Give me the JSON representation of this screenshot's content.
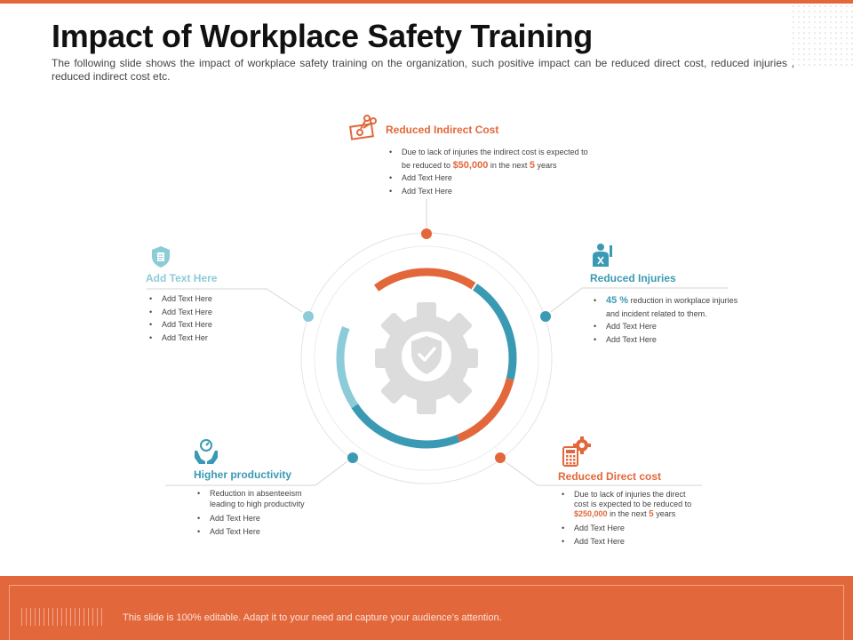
{
  "header": {
    "title": "Impact of Workplace Safety Training",
    "subtitle": "The following slide shows the impact of workplace safety training on the organization, such positive impact can be reduced direct cost, reduced injuries , reduced indirect cost etc."
  },
  "center_icons": [
    "gear-icon",
    "shield-check-icon"
  ],
  "colors": {
    "orange": "#e2683c",
    "teal": "#3a9ab4",
    "light_teal": "#8ccbd8",
    "gray": "#dcdcdc"
  },
  "blocks": {
    "top": {
      "icon": "money-scissors-icon",
      "title": "Reduced Indirect Cost",
      "item1_a": "Due to lack of injuries the indirect cost is expected to",
      "item1_b": "be reduced to",
      "item1_amount": "$50,000",
      "item1_c": "in the next",
      "item1_num": "5",
      "item1_d": "years",
      "items": [
        "Add Text Here",
        "Add Text Here"
      ]
    },
    "right": {
      "icon": "injured-person-icon",
      "title": "Reduced Injuries",
      "item1_pct": "45 %",
      "item1_a": "reduction in workplace injuries",
      "item1_b": "and incident related to them.",
      "items": [
        "Add Text Here",
        "Add Text Here"
      ]
    },
    "left": {
      "icon": "shield-document-icon",
      "title": "Add Text Here",
      "items": [
        "Add Text Here",
        "Add Text Here",
        "Add Text Here",
        "Add Text Her"
      ]
    },
    "bottom_left": {
      "icon": "hands-gauge-icon",
      "title": "Higher productivity",
      "item1_a": "Reduction in absenteeism",
      "item1_b": "leading to high productivity",
      "items": [
        "Add Text Here",
        "Add Text Here"
      ]
    },
    "bottom_right": {
      "icon": "calculator-gear-icon",
      "title": "Reduced Direct cost",
      "item1_a": "Due to lack of injuries the direct",
      "item1_b": "cost is expected to be reduced to",
      "item1_amount": "$250,000",
      "item1_c": "in the next",
      "item1_num": "5",
      "item1_d": "years",
      "items": [
        "Add Text Here",
        "Add Text Here"
      ]
    }
  },
  "footer": {
    "text": "This slide is 100% editable. Adapt it to your need and capture your audience’s attention."
  }
}
